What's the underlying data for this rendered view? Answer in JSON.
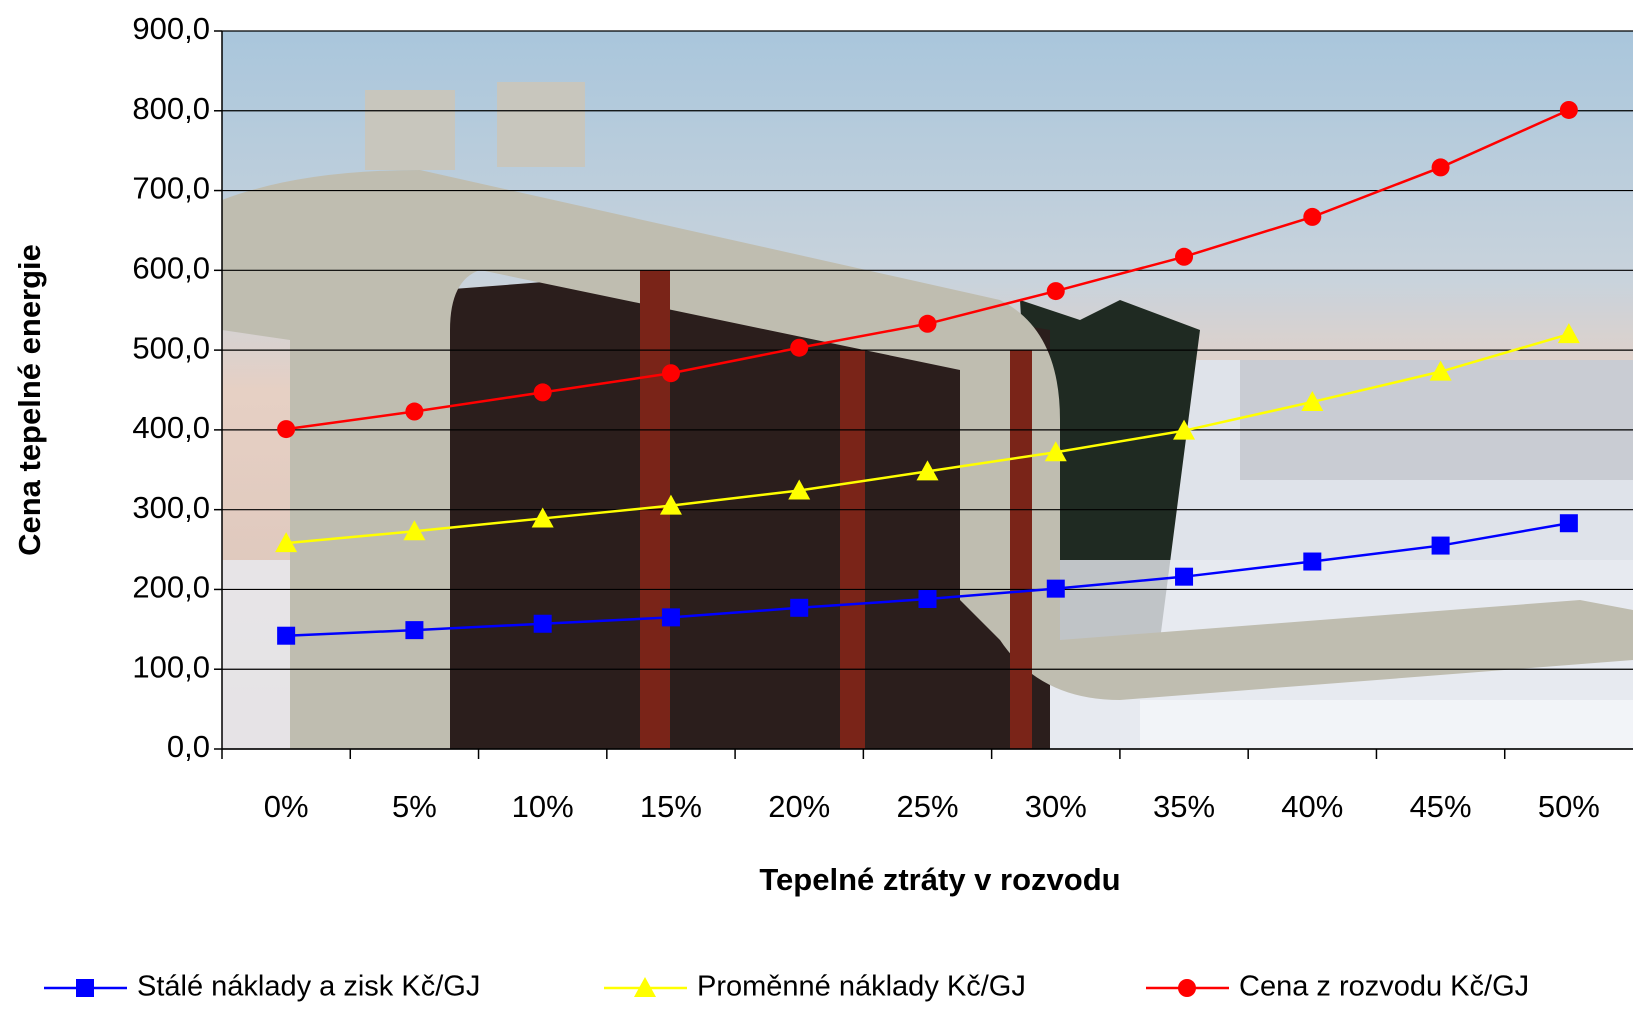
{
  "chart_data": {
    "type": "line",
    "x_label": "Tepelné ztráty v rozvodu",
    "y_label": "Cena tepelné energie",
    "categories": [
      "0%",
      "5%",
      "10%",
      "15%",
      "20%",
      "25%",
      "30%",
      "35%",
      "40%",
      "45%",
      "50%"
    ],
    "series": [
      {
        "name": "Stálé náklady a zisk Kč/GJ",
        "color": "#0000ff",
        "marker": "square",
        "values": [
          142,
          149,
          157,
          165,
          177,
          188,
          201,
          216,
          235,
          255,
          283
        ]
      },
      {
        "name": "Proměnné náklady Kč/GJ",
        "color": "#ffff00",
        "marker": "triangle",
        "values": [
          258,
          273,
          289,
          305,
          324,
          348,
          372,
          399,
          435,
          473,
          520
        ]
      },
      {
        "name": "Cena z rozvodu Kč/GJ",
        "color": "#ff0000",
        "marker": "circle",
        "values": [
          401,
          423,
          447,
          471,
          503,
          533,
          574,
          617,
          667,
          729,
          801
        ]
      }
    ],
    "ylim": [
      0,
      900
    ],
    "yticks": [
      {
        "value": 0,
        "label": "0,0"
      },
      {
        "value": 100,
        "label": "100,0"
      },
      {
        "value": 200,
        "label": "200,0"
      },
      {
        "value": 300,
        "label": "300,0"
      },
      {
        "value": 400,
        "label": "400,0"
      },
      {
        "value": 500,
        "label": "500,0"
      },
      {
        "value": 600,
        "label": "600,0"
      },
      {
        "value": 700,
        "label": "700,0"
      },
      {
        "value": 800,
        "label": "800,0"
      },
      {
        "value": 900,
        "label": "900,0"
      }
    ],
    "grid": true
  }
}
